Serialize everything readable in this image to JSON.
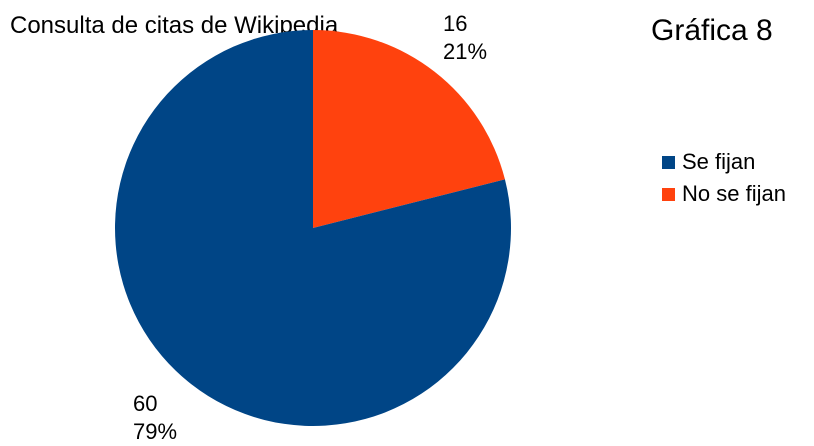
{
  "chart_data": {
    "type": "pie",
    "title": "Consulta de citas de Wikipedia",
    "figure_label": "Gráfica 8",
    "legend_position": "right",
    "slices": [
      {
        "name": "Se fijan",
        "value": 60,
        "percent_label": "79%",
        "color": "#004586"
      },
      {
        "name": "No se fijan",
        "value": 16,
        "percent_label": "21%",
        "color": "#ff420e"
      }
    ]
  }
}
